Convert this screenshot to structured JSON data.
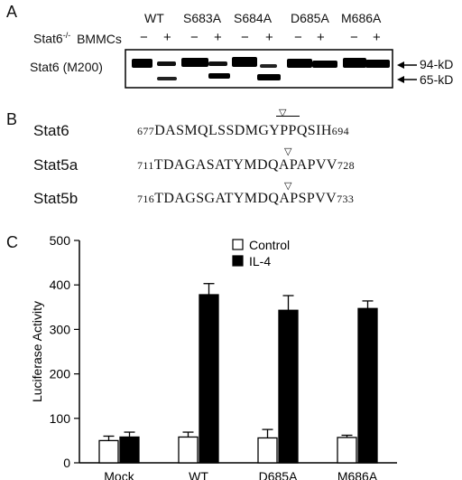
{
  "panel_a": {
    "letter": "A",
    "lanes": [
      "WT",
      "S683A",
      "S684A",
      "D685A",
      "M686A"
    ],
    "row_label_main": "Stat6",
    "row_label_sup": "-/-",
    "row_label_rest": "BMMCs",
    "signs": [
      "−",
      "+",
      "−",
      "+",
      "−",
      "+",
      "−",
      "+",
      "−",
      "+"
    ],
    "blot_label": "Stat6 (M200)",
    "markers": [
      "94-kD",
      "65-kD"
    ]
  },
  "panel_b": {
    "letter": "B",
    "rows": [
      {
        "name": "Stat6",
        "start": "677",
        "seq": "DASMQLSSDMGYPPQSIH",
        "end": "694"
      },
      {
        "name": "Stat5a",
        "start": "711",
        "seq": "TDAGASATYMDQAPAPVV",
        "end": "728"
      },
      {
        "name": "Stat5b",
        "start": "716",
        "seq": "TDAGSGATYMDQAPSPVV",
        "end": "733"
      }
    ]
  },
  "panel_c": {
    "letter": "C",
    "chart_data": {
      "type": "bar",
      "categories": [
        "Mock",
        "WT",
        "D685A",
        "M686A"
      ],
      "series": [
        {
          "name": "Control",
          "values": [
            50,
            58,
            56,
            57
          ],
          "errors": [
            10,
            11,
            19,
            5
          ],
          "color": "#ffffff"
        },
        {
          "name": "IL-4",
          "values": [
            58,
            378,
            343,
            347
          ],
          "errors": [
            11,
            25,
            33,
            17
          ],
          "color": "#000000"
        }
      ],
      "ylabel": "Luciferase Activity",
      "ylim": [
        0,
        500
      ],
      "yticks": [
        0,
        100,
        200,
        300,
        400,
        500
      ],
      "legend": "top-right"
    }
  }
}
